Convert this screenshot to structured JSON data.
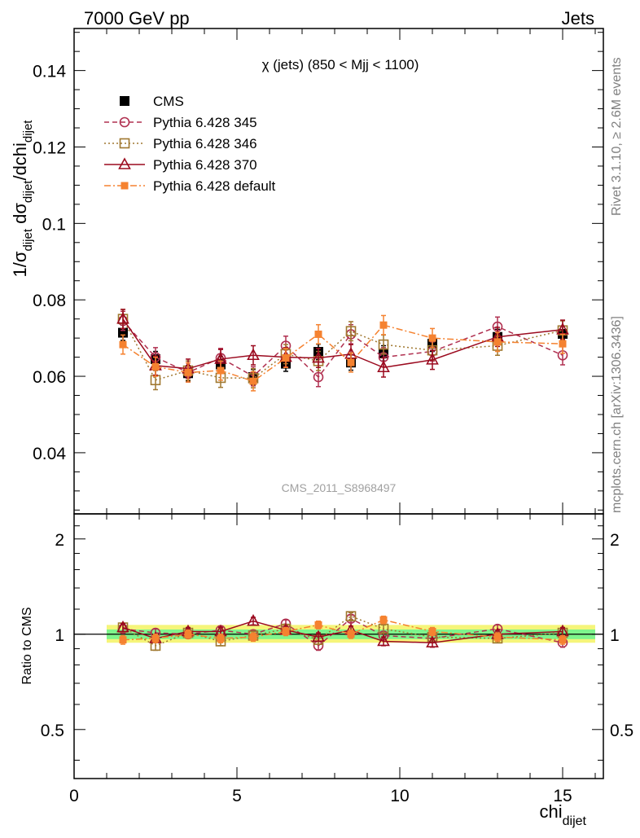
{
  "header": {
    "left": "7000 GeV pp",
    "right": "Jets"
  },
  "side_labels": {
    "rivet": "Rivet 3.1.10, ≥ 2.6M events",
    "mcplots": "mcplots.cern.ch [arXiv:1306.3436]"
  },
  "watermark": "CMS_2011_S8968497",
  "colors": {
    "cms": "#000000",
    "p345": "#b03050",
    "p346": "#a07830",
    "p370": "#9b0a1f",
    "pdef": "#f58230",
    "band_inner": "#7ef58c",
    "band_outer": "#f5f57a"
  },
  "chart_data": [
    {
      "type": "line",
      "title": "χ (jets) (850 < Mjj < 1100)",
      "ylabel_parts": [
        "1/σ",
        "dijet",
        " dσ",
        "dijet",
        "/dchi",
        "dijet"
      ],
      "xlim": [
        0,
        16.25
      ],
      "ylim": [
        0.024,
        0.151
      ],
      "yticks": [
        0.04,
        0.06,
        0.08,
        0.1,
        0.12,
        0.14
      ],
      "ytick_labels": [
        "0.04",
        "0.06",
        "0.08",
        "0.1",
        "0.12",
        "0.14"
      ],
      "x": [
        1.5,
        2.5,
        3.5,
        4.5,
        5.5,
        6.5,
        7.5,
        8.5,
        9.5,
        11,
        13,
        15
      ],
      "series": [
        {
          "name": "CMS",
          "key": "cms",
          "marker": "square-filled",
          "values": [
            0.0714,
            0.0645,
            0.0608,
            0.0631,
            0.0598,
            0.0633,
            0.0664,
            0.0636,
            0.066,
            0.0685,
            0.0703,
            0.0711
          ],
          "errors": [
            0.002,
            0.002,
            0.002,
            0.002,
            0.002,
            0.002,
            0.002,
            0.002,
            0.002,
            0.002,
            0.002,
            0.002
          ]
        },
        {
          "name": "Pythia 6.428 345",
          "key": "p345",
          "marker": "circle-open",
          "dash": "6,4",
          "values": [
            0.0745,
            0.065,
            0.061,
            0.0648,
            0.06,
            0.068,
            0.0598,
            0.071,
            0.065,
            0.0665,
            0.073,
            0.0655
          ],
          "errors": [
            0.0025,
            0.0025,
            0.0025,
            0.0025,
            0.0025,
            0.0025,
            0.0025,
            0.0025,
            0.0025,
            0.0025,
            0.0025,
            0.0025
          ]
        },
        {
          "name": "Pythia 6.428 346",
          "key": "p346",
          "marker": "square-open",
          "dash": "2,3",
          "values": [
            0.075,
            0.059,
            0.0615,
            0.0596,
            0.0595,
            0.0658,
            0.064,
            0.0718,
            0.0683,
            0.0668,
            0.068,
            0.072
          ],
          "errors": [
            0.0025,
            0.0025,
            0.0025,
            0.0025,
            0.0025,
            0.0025,
            0.0025,
            0.0025,
            0.0025,
            0.0025,
            0.0025,
            0.0025
          ]
        },
        {
          "name": "Pythia 6.428 370",
          "key": "p370",
          "marker": "triangle-open",
          "dash": "",
          "values": [
            0.075,
            0.0628,
            0.062,
            0.0645,
            0.0655,
            0.065,
            0.0648,
            0.0658,
            0.0623,
            0.0643,
            0.0703,
            0.0722
          ],
          "errors": [
            0.0025,
            0.0025,
            0.0025,
            0.0025,
            0.0025,
            0.0025,
            0.0025,
            0.0025,
            0.0025,
            0.0025,
            0.0025,
            0.0025
          ]
        },
        {
          "name": "Pythia 6.428 default",
          "key": "pdef",
          "marker": "square-filled-small",
          "dash": "8,3,2,3",
          "values": [
            0.0683,
            0.0625,
            0.061,
            0.0615,
            0.0587,
            0.0648,
            0.071,
            0.0636,
            0.0734,
            0.07,
            0.069,
            0.0685
          ],
          "errors": [
            0.0025,
            0.0025,
            0.0025,
            0.0025,
            0.0025,
            0.0025,
            0.0025,
            0.0025,
            0.0025,
            0.0025,
            0.0025,
            0.0025
          ]
        }
      ]
    },
    {
      "type": "line",
      "title": "",
      "ylabel": "Ratio to CMS",
      "xlabel": "chi",
      "xlabel_sub": "dijet",
      "xlim": [
        0,
        16.25
      ],
      "ylim": [
        0.35,
        2.4
      ],
      "yscale": "log",
      "yticks": [
        0.5,
        1,
        2
      ],
      "ytick_labels": [
        "0.5",
        "1",
        "2"
      ],
      "xticks": [
        0,
        5,
        10,
        15
      ],
      "xtick_labels": [
        "0",
        "5",
        "10",
        "15"
      ],
      "band_range": [
        1,
        16
      ],
      "band_inner": [
        0.965,
        1.035
      ],
      "band_outer": [
        0.94,
        1.07
      ],
      "x": [
        1.5,
        2.5,
        3.5,
        4.5,
        5.5,
        6.5,
        7.5,
        8.5,
        9.5,
        11,
        13,
        15
      ],
      "series": [
        {
          "name": "Pythia 6.428 345",
          "key": "p345",
          "marker": "circle-open",
          "dash": "6,4",
          "values": [
            1.04,
            1.01,
            1.0,
            1.03,
            1.0,
            1.08,
            0.92,
            1.12,
            0.99,
            0.97,
            1.04,
            0.94
          ],
          "errors": [
            0.03,
            0.03,
            0.03,
            0.03,
            0.03,
            0.03,
            0.03,
            0.03,
            0.03,
            0.03,
            0.03,
            0.03
          ]
        },
        {
          "name": "Pythia 6.428 346",
          "key": "p346",
          "marker": "square-open",
          "dash": "2,3",
          "values": [
            1.05,
            0.92,
            1.01,
            0.95,
            0.99,
            1.04,
            0.96,
            1.14,
            1.04,
            0.98,
            0.97,
            1.01
          ],
          "errors": [
            0.03,
            0.03,
            0.03,
            0.03,
            0.03,
            0.03,
            0.03,
            0.03,
            0.03,
            0.03,
            0.03,
            0.03
          ]
        },
        {
          "name": "Pythia 6.428 370",
          "key": "p370",
          "marker": "triangle-open",
          "dash": "",
          "values": [
            1.05,
            0.97,
            1.02,
            1.02,
            1.1,
            1.03,
            0.98,
            1.03,
            0.95,
            0.94,
            1.0,
            1.02
          ],
          "errors": [
            0.03,
            0.03,
            0.03,
            0.03,
            0.03,
            0.03,
            0.03,
            0.03,
            0.03,
            0.03,
            0.03,
            0.03
          ]
        },
        {
          "name": "Pythia 6.428 default",
          "key": "pdef",
          "marker": "square-filled-small",
          "dash": "8,3,2,3",
          "values": [
            0.96,
            0.97,
            1.0,
            0.97,
            0.98,
            1.02,
            1.07,
            1.0,
            1.11,
            1.02,
            0.98,
            0.96
          ],
          "errors": [
            0.03,
            0.03,
            0.03,
            0.03,
            0.03,
            0.03,
            0.03,
            0.03,
            0.03,
            0.03,
            0.03,
            0.03
          ]
        }
      ]
    }
  ]
}
